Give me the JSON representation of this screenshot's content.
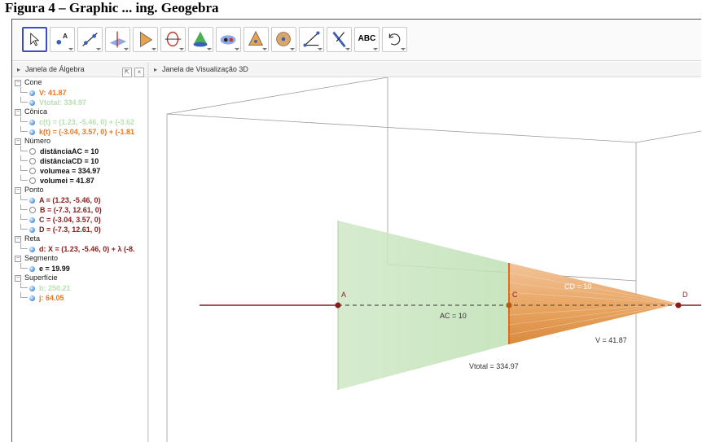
{
  "caption": "Figura 4 – Graphic ... ing. Geogebra",
  "toolbar": {
    "tools": [
      {
        "icon": "move-arrow-icon",
        "selected": true
      },
      {
        "icon": "point-icon"
      },
      {
        "icon": "line-icon"
      },
      {
        "icon": "perpendicular-plane-icon"
      },
      {
        "icon": "pyramid-icon"
      },
      {
        "icon": "circle-axis-icon"
      },
      {
        "icon": "sphere-icon"
      },
      {
        "icon": "intersect-icon"
      },
      {
        "icon": "cone-icon"
      },
      {
        "icon": "sphere-solid-icon"
      },
      {
        "icon": "angle-icon"
      },
      {
        "icon": "reflect-icon"
      },
      {
        "icon": "text-icon",
        "label": "ABC"
      },
      {
        "icon": "rotate-view-icon"
      }
    ]
  },
  "algebra_panel": {
    "title": "Janela de Álgebra",
    "categories": [
      {
        "name": "Cone",
        "items": [
          {
            "text": "V: 41.87",
            "color": "#e87722",
            "state": "on"
          },
          {
            "text": "Vtotal: 334.97",
            "color": "#b9e0b0",
            "state": "on"
          }
        ]
      },
      {
        "name": "Cônica",
        "items": [
          {
            "text": "c(t) = (1.23, -5.46, 0) + (-3.62",
            "color": "#b9e0b0",
            "state": "on"
          },
          {
            "text": "k(t) = (-3.04, 3.57, 0) + (-1.81",
            "color": "#e87722",
            "state": "on"
          }
        ]
      },
      {
        "name": "Número",
        "items": [
          {
            "text": "distânciaAC = 10",
            "color": "#111111",
            "state": "off"
          },
          {
            "text": "distânciaCD = 10",
            "color": "#111111",
            "state": "off"
          },
          {
            "text": "volumea = 334.97",
            "color": "#111111",
            "state": "off"
          },
          {
            "text": "volumei = 41.87",
            "color": "#111111",
            "state": "off"
          }
        ]
      },
      {
        "name": "Ponto",
        "items": [
          {
            "text": "A = (1.23, -5.46, 0)",
            "color": "#8b1a1a",
            "state": "on"
          },
          {
            "text": "B = (-7.3, 12.61, 0)",
            "color": "#8b1a1a",
            "state": "off"
          },
          {
            "text": "C = (-3.04, 3.57, 0)",
            "color": "#8b1a1a",
            "state": "on"
          },
          {
            "text": "D = (-7.3, 12.61, 0)",
            "color": "#8b1a1a",
            "state": "on"
          }
        ]
      },
      {
        "name": "Reta",
        "items": [
          {
            "text": "d: X = (1.23, -5.46, 0) + λ (-8.",
            "color": "#8b1a1a",
            "state": "on"
          }
        ]
      },
      {
        "name": "Segmento",
        "items": [
          {
            "text": "e = 19.99",
            "color": "#111111",
            "state": "on"
          }
        ]
      },
      {
        "name": "Superfície",
        "items": [
          {
            "text": "b: 250.21",
            "color": "#b9e0b0",
            "state": "on"
          },
          {
            "text": "j: 64.05",
            "color": "#e87722",
            "state": "on"
          }
        ]
      }
    ]
  },
  "view3d": {
    "title": "Janela de Visualização 3D",
    "labels": {
      "point_a": "A",
      "point_c": "C",
      "point_d": "D",
      "ac": "AC = 10",
      "cd": "CD = 10",
      "v": "V = 41.87",
      "vtotal": "Vtotal = 334.97"
    },
    "colors": {
      "frustum": "#c8e6c0",
      "cone": "#e7a15c",
      "line": "#8b1a1a"
    }
  }
}
